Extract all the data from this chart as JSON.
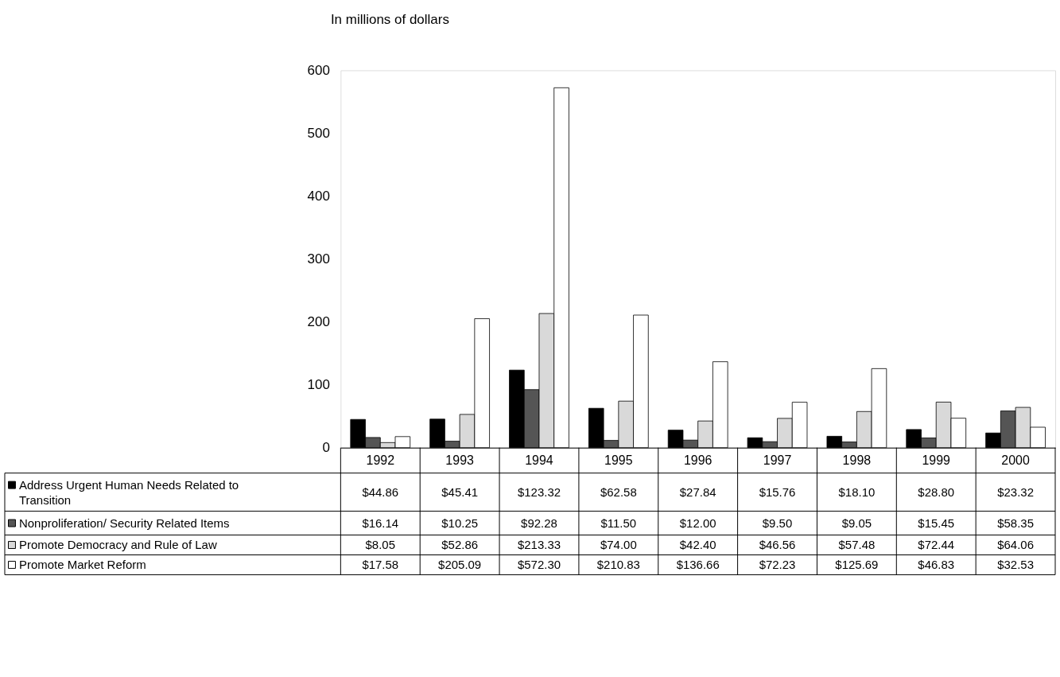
{
  "chart_data": {
    "type": "bar",
    "ylabel": "In millions of dollars",
    "categories": [
      "1992",
      "1993",
      "1994",
      "1995",
      "1996",
      "1997",
      "1998",
      "1999",
      "2000"
    ],
    "series": [
      {
        "name": "Address Urgent Human Needs Related to Transition",
        "color": "#000000",
        "values": [
          44.86,
          45.41,
          123.32,
          62.58,
          27.84,
          15.76,
          18.1,
          28.8,
          23.32
        ],
        "value_labels": [
          "$44.86",
          "$45.41",
          "$123.32",
          "$62.58",
          "$27.84",
          "$15.76",
          "$18.10",
          "$28.80",
          "$23.32"
        ]
      },
      {
        "name": "Nonproliferation/ Security Related Items",
        "color": "#555555",
        "values": [
          16.14,
          10.25,
          92.28,
          11.5,
          12.0,
          9.5,
          9.05,
          15.45,
          58.35
        ],
        "value_labels": [
          "$16.14",
          "$10.25",
          "$92.28",
          "$11.50",
          "$12.00",
          "$9.50",
          "$9.05",
          "$15.45",
          "$58.35"
        ]
      },
      {
        "name": "Promote Democracy and Rule of Law",
        "color": "#d9d9d9",
        "values": [
          8.05,
          52.86,
          213.33,
          74.0,
          42.4,
          46.56,
          57.48,
          72.44,
          64.06
        ],
        "value_labels": [
          "$8.05",
          "$52.86",
          "$213.33",
          "$74.00",
          "$42.40",
          "$46.56",
          "$57.48",
          "$72.44",
          "$64.06"
        ]
      },
      {
        "name": "Promote Market Reform",
        "color": "#ffffff",
        "values": [
          17.58,
          205.09,
          572.3,
          210.83,
          136.66,
          72.23,
          125.69,
          46.83,
          32.53
        ],
        "value_labels": [
          "$17.58",
          "$205.09",
          "$572.30",
          "$210.83",
          "$136.66",
          "$72.23",
          "$125.69",
          "$46.83",
          "$32.53"
        ]
      }
    ],
    "ylim": [
      0,
      600
    ],
    "yticks": [
      0,
      100,
      200,
      300,
      400,
      500,
      600
    ],
    "grid": false,
    "legend": "bottom left"
  }
}
